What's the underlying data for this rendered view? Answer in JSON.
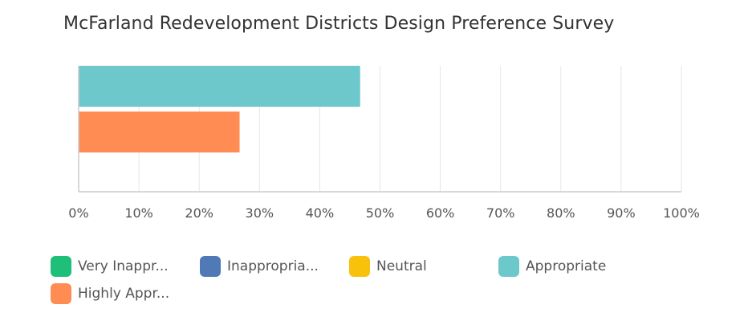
{
  "chart_data": {
    "type": "bar",
    "orientation": "horizontal",
    "title": "McFarland Redevelopment Districts Design Preference Survey",
    "xlim": [
      0,
      100
    ],
    "x_ticks": [
      "0%",
      "10%",
      "20%",
      "30%",
      "40%",
      "50%",
      "60%",
      "70%",
      "80%",
      "90%",
      "100%"
    ],
    "grid": true,
    "legend_position": "bottom",
    "series": [
      {
        "name": "Very Inappr...",
        "color": "#1ebf79",
        "value": 0
      },
      {
        "name": "Inappropria...",
        "color": "#4f7ab5",
        "value": 0
      },
      {
        "name": "Neutral",
        "color": "#f7c10c",
        "value": 0
      },
      {
        "name": "Appropriate",
        "color": "#6dc8cc",
        "value": 46.7
      },
      {
        "name": "Highly Appr...",
        "color": "#ff8c52",
        "value": 26.7
      }
    ]
  }
}
